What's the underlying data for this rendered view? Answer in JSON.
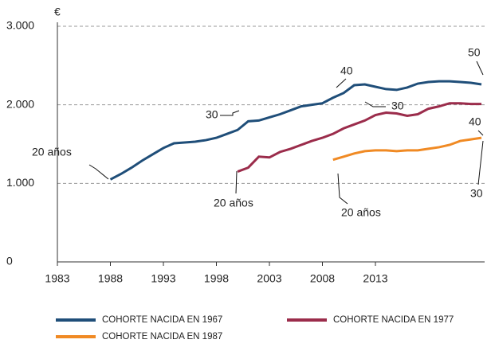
{
  "chart_data": {
    "type": "line",
    "y_unit_label": "€",
    "xlim": [
      1983,
      2023.3
    ],
    "xticks": [
      1983,
      1988,
      1993,
      1998,
      2003,
      2008,
      2013
    ],
    "ylim": [
      0,
      3000
    ],
    "yticks": [
      {
        "value": 0,
        "label": "0"
      },
      {
        "value": 1000,
        "label": "1.000"
      },
      {
        "value": 2000,
        "label": "2.000"
      },
      {
        "value": 3000,
        "label": "3.000"
      }
    ],
    "grid": true,
    "series": [
      {
        "name": "COHORTE NACIDA EN 1967",
        "color": "#1f4e79",
        "x": [
          1988,
          1989,
          1990,
          1991,
          1992,
          1993,
          1994,
          1995,
          1996,
          1997,
          1998,
          1999,
          2000,
          2001,
          2002,
          2003,
          2004,
          2005,
          2006,
          2007,
          2008,
          2009,
          2010,
          2011,
          2012,
          2013,
          2014,
          2015,
          2016,
          2017,
          2018,
          2019,
          2020,
          2021,
          2022,
          2023
        ],
        "values": [
          1050,
          1120,
          1200,
          1290,
          1370,
          1450,
          1510,
          1520,
          1530,
          1550,
          1580,
          1630,
          1680,
          1790,
          1800,
          1840,
          1880,
          1930,
          1980,
          2000,
          2020,
          2090,
          2150,
          2250,
          2260,
          2230,
          2200,
          2190,
          2220,
          2270,
          2290,
          2300,
          2300,
          2290,
          2280,
          2260
        ]
      },
      {
        "name": "COHORTE NACIDA EN 1977",
        "color": "#9b2c4b",
        "x": [
          2000,
          2001,
          2002,
          2003,
          2004,
          2005,
          2006,
          2007,
          2008,
          2009,
          2010,
          2011,
          2012,
          2013,
          2014,
          2015,
          2016,
          2017,
          2018,
          2019,
          2020,
          2021,
          2022,
          2023
        ],
        "values": [
          1150,
          1200,
          1340,
          1330,
          1400,
          1440,
          1490,
          1540,
          1580,
          1630,
          1700,
          1750,
          1800,
          1870,
          1900,
          1890,
          1860,
          1880,
          1950,
          1980,
          2020,
          2020,
          2010,
          2010
        ]
      },
      {
        "name": "COHORTE NACIDA EN 1987",
        "color": "#f08a24",
        "x": [
          2009,
          2010,
          2011,
          2012,
          2013,
          2014,
          2015,
          2016,
          2017,
          2018,
          2019,
          2020,
          2021,
          2022,
          2023
        ],
        "values": [
          1300,
          1340,
          1380,
          1410,
          1420,
          1420,
          1410,
          1420,
          1420,
          1440,
          1460,
          1490,
          1540,
          1560,
          1580
        ]
      }
    ],
    "annotations": [
      "20 años",
      "30",
      "40",
      "50",
      "20 años",
      "30",
      "40",
      "30",
      "20 años"
    ]
  }
}
